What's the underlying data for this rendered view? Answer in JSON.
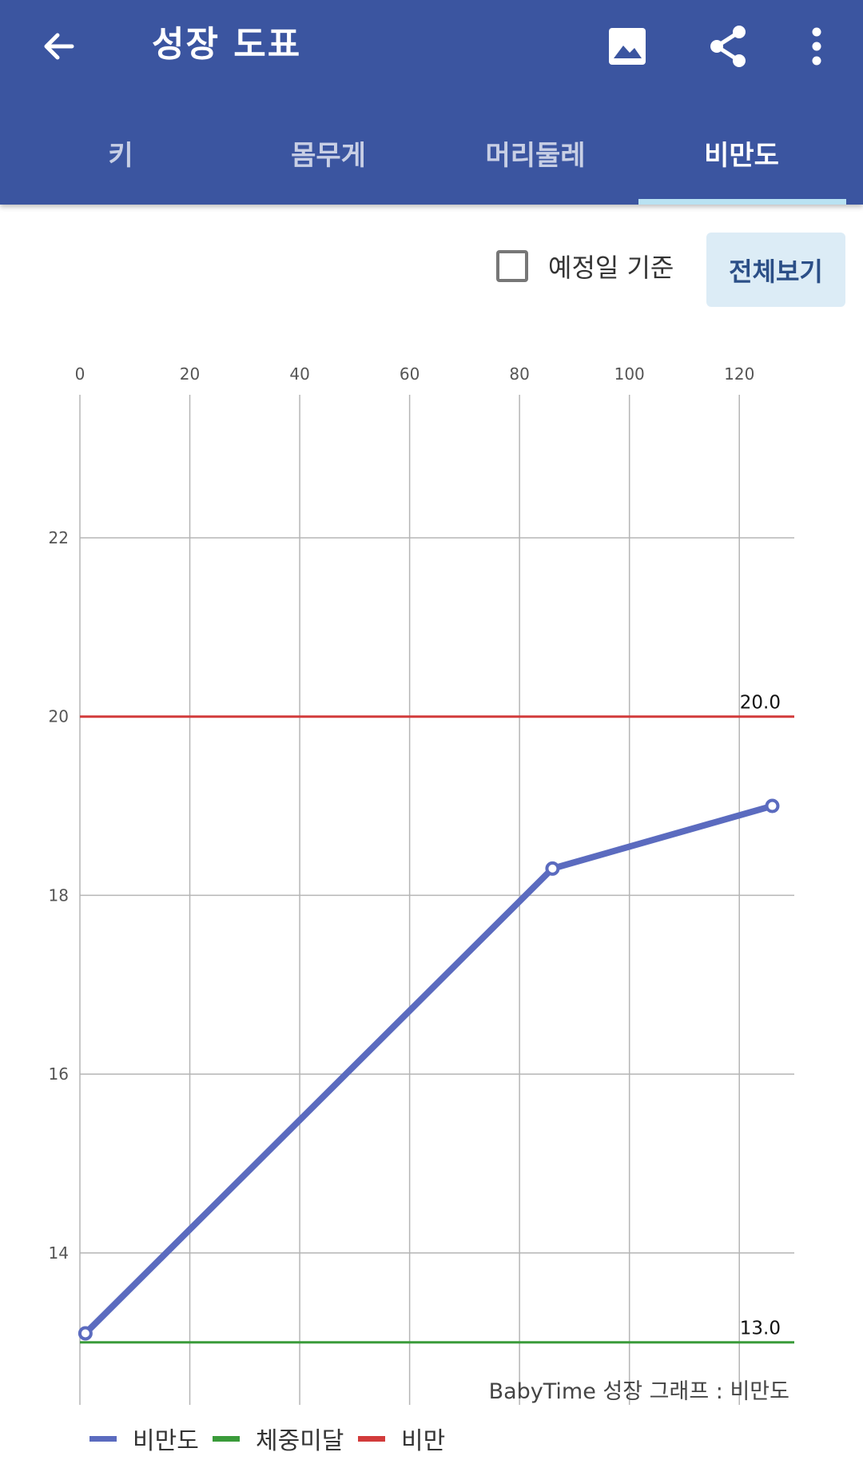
{
  "app_bar": {
    "back_icon": "arrow-left-icon",
    "title": "성장 도표",
    "actions": [
      "image-icon",
      "share-icon",
      "more-vert-icon"
    ]
  },
  "tabs": [
    {
      "label": "키",
      "active": false
    },
    {
      "label": "몸무게",
      "active": false
    },
    {
      "label": "머리둘레",
      "active": false
    },
    {
      "label": "비만도",
      "active": true
    }
  ],
  "controls": {
    "due_date_label": "예정일 기준",
    "due_date_checked": false,
    "view_all_label": "전체보기"
  },
  "chart_data": {
    "type": "line",
    "x_ticks": [
      "0",
      "20",
      "40",
      "60",
      "80",
      "100",
      "120"
    ],
    "y_ticks": [
      "14",
      "16",
      "18",
      "20",
      "22"
    ],
    "xlim": [
      0,
      130
    ],
    "ylim": [
      12.3,
      23.6
    ],
    "grid": true,
    "series": [
      {
        "name": "비만도",
        "color": "#5b6bbf",
        "x": [
          1,
          86,
          126
        ],
        "y": [
          13.1,
          18.3,
          19.0
        ]
      }
    ],
    "reference_lines": [
      {
        "name": "비만",
        "value": 20.0,
        "label": "20.0",
        "color": "#d23b3b"
      },
      {
        "name": "체중미달",
        "value": 13.0,
        "label": "13.0",
        "color": "#3a9b3a"
      }
    ],
    "watermark": "BabyTime 성장 그래프 : 비만도",
    "legend": [
      {
        "label": "비만도",
        "color": "#5b6bbf"
      },
      {
        "label": "체중미달",
        "color": "#3a9b3a"
      },
      {
        "label": "비만",
        "color": "#d23b3b"
      }
    ],
    "legend_position": "bottom-left"
  }
}
